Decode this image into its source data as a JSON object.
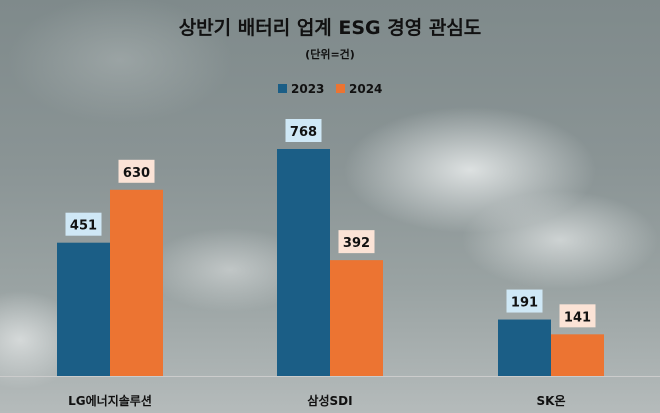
{
  "chart_data": {
    "type": "bar",
    "title": "상반기 배터리 업계 ESG 경영 관심도",
    "subtitle": "(단위=건)",
    "categories": [
      "LG에너지솔루션",
      "삼성SDI",
      "SK온"
    ],
    "series": [
      {
        "name": "2023",
        "values": [
          451,
          768,
          191
        ],
        "color": "#1b5e86",
        "label_bg": "#cfe8f6"
      },
      {
        "name": "2024",
        "values": [
          630,
          392,
          141
        ],
        "color": "#ec7432",
        "label_bg": "#fbe3d6"
      }
    ],
    "ylim": [
      0,
      800
    ],
    "legend": "top-center",
    "grid": false,
    "xlabel": "",
    "ylabel": ""
  }
}
